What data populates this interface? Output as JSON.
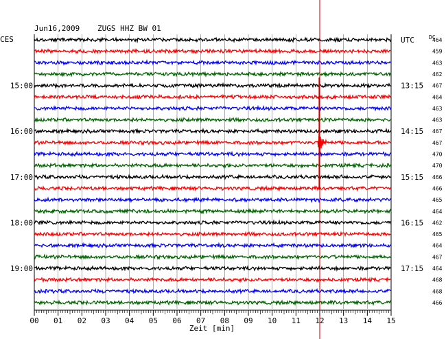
{
  "header": {
    "date": "Jun16,2009",
    "station": "ZUGS HHZ BW 01",
    "left_tz": "CES",
    "right_tz": "UTC",
    "dc_label": "DC"
  },
  "colors": {
    "cycle": [
      "#000000",
      "#ff0000",
      "#0000ff",
      "#006400"
    ],
    "grid": "#888888",
    "marker": "#cc0000"
  },
  "chart_data": {
    "type": "line",
    "title": "Jun16,2009  ZUGS HHZ BW 01",
    "xlabel": "Zeit [min]",
    "ylabel": "",
    "xlim": [
      0,
      15
    ],
    "x_ticks": [
      "00",
      "01",
      "02",
      "03",
      "04",
      "05",
      "06",
      "07",
      "08",
      "09",
      "10",
      "11",
      "12",
      "13",
      "14",
      "15"
    ],
    "trace_count": 24,
    "left_time_labels": [
      {
        "trace_index": 4,
        "label": "15:00"
      },
      {
        "trace_index": 8,
        "label": "16:00"
      },
      {
        "trace_index": 12,
        "label": "17:00"
      },
      {
        "trace_index": 16,
        "label": "18:00"
      },
      {
        "trace_index": 20,
        "label": "19:00"
      }
    ],
    "right_time_labels": [
      {
        "trace_index": 0,
        "label": "UTC"
      },
      {
        "trace_index": 4,
        "label": "13:15"
      },
      {
        "trace_index": 8,
        "label": "14:15"
      },
      {
        "trace_index": 12,
        "label": "15:15"
      },
      {
        "trace_index": 16,
        "label": "16:15"
      },
      {
        "trace_index": 20,
        "label": "17:15"
      }
    ],
    "dc_offsets": [
      464,
      459,
      463,
      462,
      467,
      464,
      463,
      463,
      467,
      467,
      470,
      470,
      466,
      466,
      465,
      464,
      462,
      465,
      464,
      467,
      464,
      468,
      468,
      466
    ],
    "event_marker_minute": 12.0,
    "event": {
      "trace_index": 9,
      "minute": 12.0,
      "peak": 1.0
    }
  }
}
